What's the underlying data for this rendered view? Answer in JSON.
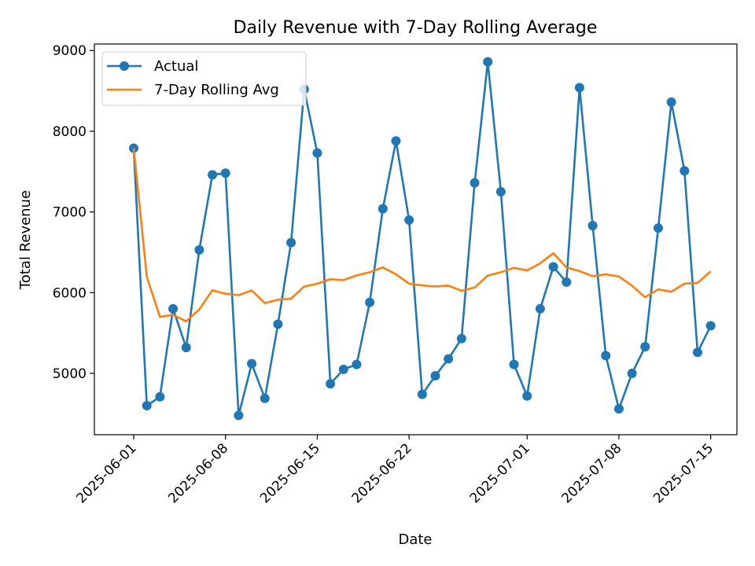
{
  "chart_data": {
    "type": "line",
    "title": "Daily Revenue with 7-Day Rolling Average",
    "xlabel": "Date",
    "ylabel": "Total Revenue",
    "ylim": [
      4240,
      9080
    ],
    "xlim": [
      "2025-05-29",
      "2025-07-17"
    ],
    "grid": false,
    "legend_position": "top-left",
    "yticks": [
      5000,
      6000,
      7000,
      8000,
      9000
    ],
    "xticks": [
      "2025-06-01",
      "2025-06-08",
      "2025-06-15",
      "2025-06-22",
      "2025-07-01",
      "2025-07-08",
      "2025-07-15"
    ],
    "x": [
      "2025-06-01",
      "2025-06-02",
      "2025-06-03",
      "2025-06-04",
      "2025-06-05",
      "2025-06-06",
      "2025-06-07",
      "2025-06-08",
      "2025-06-09",
      "2025-06-10",
      "2025-06-11",
      "2025-06-12",
      "2025-06-13",
      "2025-06-14",
      "2025-06-15",
      "2025-06-16",
      "2025-06-17",
      "2025-06-18",
      "2025-06-19",
      "2025-06-20",
      "2025-06-21",
      "2025-06-22",
      "2025-06-23",
      "2025-06-24",
      "2025-06-25",
      "2025-06-26",
      "2025-06-27",
      "2025-06-28",
      "2025-06-29",
      "2025-06-30",
      "2025-07-01",
      "2025-07-02",
      "2025-07-03",
      "2025-07-04",
      "2025-07-05",
      "2025-07-06",
      "2025-07-07",
      "2025-07-08",
      "2025-07-09",
      "2025-07-10",
      "2025-07-11",
      "2025-07-12",
      "2025-07-13",
      "2025-07-14",
      "2025-07-15"
    ],
    "series": [
      {
        "name": "Actual",
        "color": "#1f77b4",
        "marker": "circle",
        "values": [
          7790,
          4600,
          4710,
          5800,
          5320,
          6530,
          7460,
          7480,
          4480,
          5120,
          4690,
          5610,
          6620,
          8520,
          7730,
          4870,
          5050,
          5110,
          5880,
          7040,
          7880,
          6900,
          4740,
          4970,
          5180,
          5430,
          7360,
          8860,
          7250,
          5110,
          4720,
          5800,
          6320,
          6130,
          8540,
          6830,
          5220,
          4560,
          5000,
          5330,
          6800,
          8360,
          7510,
          5260,
          5590
        ]
      },
      {
        "name": "7-Day Rolling Avg",
        "color": "#ff7f0e",
        "marker": "none",
        "values": [
          7790,
          6195,
          5700,
          5725,
          5644,
          5792,
          6030,
          5986,
          5969,
          6027,
          5870,
          5913,
          5926,
          6076,
          6111,
          6166,
          6156,
          6213,
          6253,
          6313,
          6227,
          6111,
          6090,
          6077,
          6087,
          6023,
          6064,
          6211,
          6254,
          6307,
          6276,
          6363,
          6489,
          6313,
          6267,
          6204,
          6227,
          6200,
          6086,
          5943,
          6041,
          6012,
          6111,
          6120,
          6264
        ]
      }
    ]
  }
}
